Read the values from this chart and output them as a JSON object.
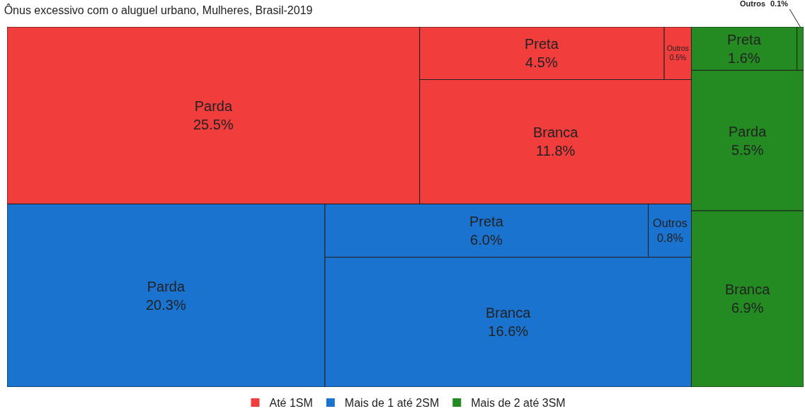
{
  "chart_data": {
    "type": "other",
    "title": "Ônus excessivo com o aluguel urbano, Mulheres, Brasil-2019",
    "categories": [
      "Parda",
      "Branca",
      "Preta",
      "Outros"
    ],
    "series": [
      {
        "name": "Até 1SM",
        "color": "#f23d3d",
        "values": [
          25.5,
          11.8,
          4.5,
          0.5
        ],
        "value_labels": [
          "25.5%",
          "11.8%",
          "4.5%",
          "0.5%"
        ]
      },
      {
        "name": "Mais de 1 até 2SM",
        "color": "#1b73d0",
        "values": [
          20.3,
          16.6,
          6.0,
          0.8
        ],
        "value_labels": [
          "20.3%",
          "16.6%",
          "6.0%",
          "0.8%"
        ]
      },
      {
        "name": "Mais de 2 até 3SM",
        "color": "#238b22",
        "values": [
          5.5,
          6.9,
          1.6,
          0.1
        ],
        "value_labels": [
          "5.5%",
          "6.9%",
          "1.6%",
          "0.1%"
        ]
      }
    ],
    "legend": "bottom"
  }
}
